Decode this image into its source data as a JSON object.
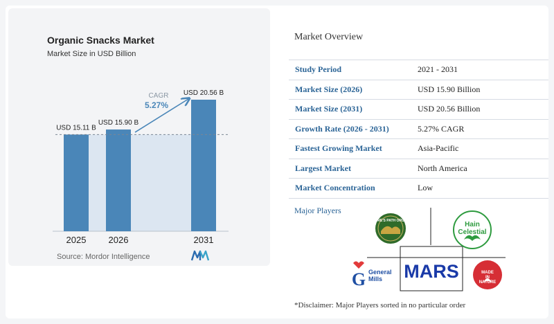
{
  "chart_data": {
    "type": "bar",
    "title": "Organic Snacks Market",
    "subtitle": "Market Size in USD Billion",
    "categories": [
      "2025",
      "2026",
      "2031"
    ],
    "values": [
      15.11,
      15.9,
      20.56
    ],
    "data_labels": [
      "USD 15.11 B",
      "USD 15.90 B",
      "USD 20.56 B"
    ],
    "ylim": [
      0,
      20.56
    ],
    "bar_color": "#4a86b8",
    "reference_line": 15.11,
    "annotation": {
      "label": "CAGR",
      "value": "5.27%"
    },
    "grid": false
  },
  "source": "Source: Mordor Intelligence",
  "overview": {
    "heading": "Market Overview",
    "rows": [
      {
        "label": "Study Period",
        "value": "2021 - 2031"
      },
      {
        "label": "Market Size (2026)",
        "value": "USD 15.90 Billion"
      },
      {
        "label": "Market Size (2031)",
        "value": "USD 20.56 Billion"
      },
      {
        "label": "Growth Rate (2026 - 2031)",
        "value": "5.27% CAGR"
      },
      {
        "label": "Fastest Growing Market",
        "value": "Asia-Pacific"
      },
      {
        "label": "Largest Market",
        "value": "North America"
      },
      {
        "label": "Market Concentration",
        "value": "Low"
      }
    ]
  },
  "players": {
    "heading": "Major Players",
    "logos": [
      {
        "name": "Nature's Path Organic",
        "text": "NATURE'S PATH ORGANIC",
        "color": "#2f6b2a"
      },
      {
        "name": "Hain Celestial",
        "text": "Hain Celestial",
        "color": "#2e9b3f"
      },
      {
        "name": "General Mills",
        "text": "General Mills",
        "color": "#1f4fa3"
      },
      {
        "name": "Mars",
        "text": "MARS",
        "color": "#1a3aa8"
      },
      {
        "name": "Made In Nature",
        "text": "MADE IN NATURE",
        "color": "#d62e35"
      }
    ]
  },
  "disclaimer": "*Disclaimer: Major Players sorted in no particular order"
}
